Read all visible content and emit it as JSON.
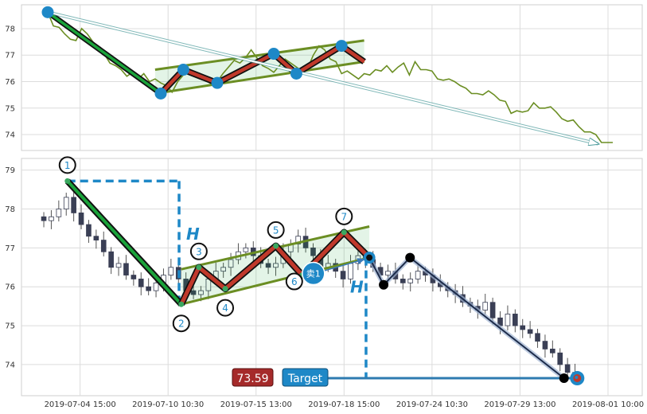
{
  "chart_data": [
    {
      "type": "line",
      "panel": "overview",
      "ylim": [
        73.4,
        78.9
      ],
      "y_ticks": [
        74,
        75,
        76,
        77,
        78
      ],
      "x_index_range": [
        0,
        50
      ],
      "series": [
        {
          "values": [
            [
              0,
              78.62
            ],
            [
              0.5,
              78.1
            ],
            [
              1,
              78.05
            ],
            [
              1.5,
              77.8
            ],
            [
              2,
              77.6
            ],
            [
              2.5,
              77.55
            ],
            [
              3,
              78.0
            ],
            [
              3.5,
              77.8
            ],
            [
              4,
              77.5
            ],
            [
              4.5,
              77.3
            ],
            [
              5,
              77.05
            ],
            [
              5.5,
              76.7
            ],
            [
              6,
              76.6
            ],
            [
              6.5,
              76.45
            ],
            [
              7,
              76.2
            ],
            [
              7.5,
              76.35
            ],
            [
              8,
              76.1
            ],
            [
              8.5,
              76.3
            ],
            [
              9,
              76.0
            ],
            [
              9.5,
              76.1
            ],
            [
              10,
              75.95
            ],
            [
              10.5,
              75.85
            ],
            [
              11,
              75.6
            ],
            [
              11.5,
              76.0
            ],
            [
              12,
              76.25
            ],
            [
              12.5,
              76.45
            ],
            [
              13,
              76.3
            ],
            [
              13.5,
              76.2
            ],
            [
              14,
              76.05
            ],
            [
              14.5,
              75.9
            ],
            [
              15,
              76.0
            ],
            [
              15.5,
              76.3
            ],
            [
              16,
              76.55
            ],
            [
              16.5,
              76.8
            ],
            [
              17,
              76.7
            ],
            [
              17.5,
              76.9
            ],
            [
              18,
              77.2
            ],
            [
              18.5,
              76.9
            ],
            [
              19,
              76.6
            ],
            [
              19.5,
              76.5
            ],
            [
              20,
              76.35
            ],
            [
              20.5,
              76.6
            ],
            [
              21,
              76.85
            ],
            [
              21.5,
              76.7
            ],
            [
              22,
              76.55
            ],
            [
              22.5,
              76.4
            ],
            [
              23,
              76.5
            ],
            [
              23.5,
              77.0
            ],
            [
              24,
              77.35
            ],
            [
              24.5,
              77.2
            ],
            [
              25,
              76.85
            ],
            [
              25.5,
              76.75
            ],
            [
              26,
              76.3
            ],
            [
              26.5,
              76.4
            ],
            [
              27,
              76.25
            ],
            [
              27.5,
              76.1
            ],
            [
              28,
              76.3
            ],
            [
              28.5,
              76.25
            ],
            [
              29,
              76.45
            ],
            [
              29.5,
              76.4
            ],
            [
              30,
              76.6
            ],
            [
              30.5,
              76.35
            ],
            [
              31,
              76.55
            ],
            [
              31.5,
              76.7
            ],
            [
              32,
              76.25
            ],
            [
              32.5,
              76.75
            ],
            [
              33,
              76.45
            ],
            [
              33.5,
              76.45
            ],
            [
              34,
              76.4
            ],
            [
              34.5,
              76.1
            ],
            [
              35,
              76.05
            ],
            [
              35.5,
              76.1
            ],
            [
              36,
              76.0
            ],
            [
              36.5,
              75.85
            ],
            [
              37,
              75.75
            ],
            [
              37.5,
              75.55
            ],
            [
              38,
              75.55
            ],
            [
              38.5,
              75.5
            ],
            [
              39,
              75.65
            ],
            [
              39.5,
              75.5
            ],
            [
              40,
              75.3
            ],
            [
              40.5,
              75.25
            ],
            [
              41,
              74.8
            ],
            [
              41.5,
              74.9
            ],
            [
              42,
              74.85
            ],
            [
              42.5,
              74.9
            ],
            [
              43,
              75.2
            ],
            [
              43.5,
              75.0
            ],
            [
              44,
              75.0
            ],
            [
              44.5,
              75.05
            ],
            [
              45,
              74.85
            ],
            [
              45.5,
              74.6
            ],
            [
              46,
              74.5
            ],
            [
              46.5,
              74.55
            ],
            [
              47,
              74.3
            ],
            [
              47.5,
              74.1
            ],
            [
              48,
              74.1
            ],
            [
              48.5,
              74.0
            ],
            [
              49,
              73.7
            ],
            [
              50,
              73.7
            ]
          ],
          "color": "#6b8e23"
        }
      ],
      "pattern": {
        "zigzag": [
          [
            0,
            78.62
          ],
          [
            10,
            75.55
          ],
          [
            12,
            76.45
          ],
          [
            15,
            75.95
          ],
          [
            20,
            77.05
          ],
          [
            22,
            76.3
          ],
          [
            26,
            77.35
          ],
          [
            28,
            76.75
          ]
        ],
        "upper_line": [
          [
            9.5,
            76.45
          ],
          [
            28,
            77.55
          ]
        ],
        "lower_line": [
          [
            9.5,
            75.55
          ],
          [
            28,
            76.75
          ]
        ],
        "arrow": [
          [
            0,
            78.62
          ],
          [
            48.7,
            73.65
          ]
        ]
      },
      "colors": {
        "line": "#6b8e23",
        "down_leg": "#1aa33a",
        "zigzag": "#c0392b",
        "channel": "#6b8e23",
        "point": "#1e88c7",
        "arrow": "#4a9a9a"
      }
    },
    {
      "type": "candlestick",
      "panel": "main",
      "ylim": [
        73.2,
        79.3
      ],
      "y_ticks": [
        74,
        75,
        76,
        77,
        78,
        79
      ],
      "x_index_range": [
        0,
        50
      ],
      "x_tick_labels": [
        {
          "i": 2,
          "label": "2019-07-04 15:00"
        },
        {
          "i": 10,
          "label": "2019-07-10 10:30"
        },
        {
          "i": 18,
          "label": "2019-07-15 13:00"
        },
        {
          "i": 26,
          "label": "2019-07-18 15:00"
        },
        {
          "i": 34,
          "label": "2019-07-24 10:30"
        },
        {
          "i": 42,
          "label": "2019-07-29 13:00"
        },
        {
          "i": 50,
          "label": "2019-08-01 10:00"
        }
      ],
      "candles_close": [
        77.7,
        77.8,
        78.0,
        78.3,
        77.9,
        77.6,
        77.3,
        77.2,
        76.9,
        76.5,
        76.6,
        76.3,
        76.2,
        76.0,
        75.9,
        76.1,
        76.3,
        76.5,
        76.2,
        75.9,
        75.8,
        75.9,
        76.2,
        76.4,
        76.5,
        76.7,
        76.9,
        77.0,
        76.8,
        76.6,
        76.5,
        76.6,
        76.9,
        77.1,
        77.3,
        77.0,
        76.8,
        76.5,
        76.6,
        76.4,
        76.2,
        76.6,
        76.8,
        76.7,
        76.5,
        76.3,
        76.4,
        76.2,
        76.1,
        76.2,
        76.4,
        76.3,
        76.1,
        76.0,
        75.9,
        75.8,
        75.6,
        75.5,
        75.4,
        75.6,
        75.2,
        75.0,
        75.3,
        75.0,
        74.9,
        74.8,
        74.6,
        74.4,
        74.3,
        74.0,
        73.8,
        73.7
      ],
      "pattern": {
        "points": [
          {
            "label": "1",
            "i": 0.85,
            "y": 78.72
          },
          {
            "label": "2",
            "i": 11.2,
            "y": 75.55
          },
          {
            "label": "3",
            "i": 12.8,
            "y": 76.5
          },
          {
            "label": "4",
            "i": 15.2,
            "y": 75.95
          },
          {
            "label": "5",
            "i": 19.8,
            "y": 77.05
          },
          {
            "label": "6",
            "i": 22.2,
            "y": 76.3
          },
          {
            "label": "7",
            "i": 26.0,
            "y": 77.4
          }
        ],
        "upper_line": [
          [
            11.2,
            76.45
          ],
          [
            28.3,
            77.55
          ]
        ],
        "lower_line": [
          [
            11.2,
            75.55
          ],
          [
            28.3,
            76.75
          ]
        ],
        "projection": [
          [
            28.3,
            76.75
          ],
          [
            29.6,
            76.05
          ],
          [
            32.0,
            76.75
          ],
          [
            46.0,
            73.65
          ]
        ],
        "h_left": {
          "i": 11.0,
          "from": 78.72,
          "to": 75.55
        },
        "h_right": {
          "i": 28.0,
          "from": 76.75,
          "to": 73.65
        },
        "target_line": {
          "from_i": 23.5,
          "to_i": 47.2,
          "y": 73.65
        }
      },
      "annotations": {
        "h_left": "H",
        "h_right": "H",
        "sell": "卖1",
        "price_box": "73.59",
        "target_box": "Target"
      },
      "colors": {
        "down_leg": "#1aa33a",
        "zigzag": "#c0392b",
        "channel": "#6b8e23",
        "projection": "#1c2b4a",
        "h_line": "#1e88c7",
        "price_box": "#a52a2a",
        "target_box": "#1e88c7"
      }
    }
  ]
}
